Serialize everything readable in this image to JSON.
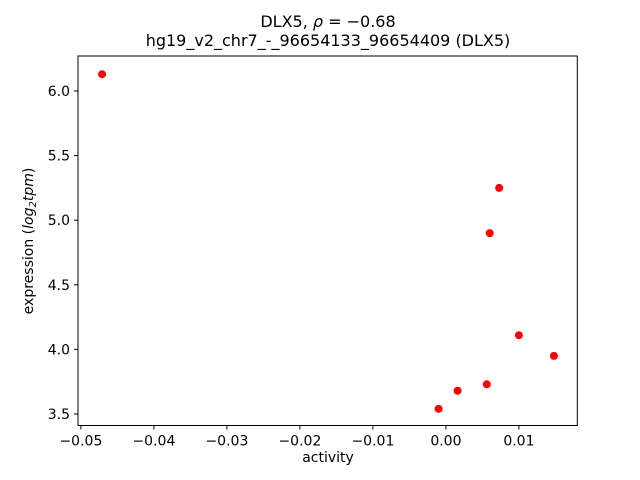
{
  "figure": {
    "title_line1": {
      "prefix": "DLX5, ",
      "rho": "ρ",
      "suffix": " = −0.68"
    },
    "title_line2": "hg19_v2_chr7_-_96654133_96654409 (DLX5)",
    "xlabel": "activity",
    "ylabel": {
      "prefix": "expression (",
      "log": "log",
      "sub": "2",
      "tpm": "tpm",
      "suffix": ")"
    }
  },
  "chart_data": {
    "type": "scatter",
    "title": "DLX5, ρ = −0.68\nhg19_v2_chr7_-_96654133_96654409 (DLX5)",
    "xlabel": "activity",
    "ylabel": "expression (log2tpm)",
    "legend": "none",
    "grid": false,
    "marker_color": "#ff0000",
    "marker_radius_px": 4,
    "axes_color": "#000000",
    "background_color": "#ffffff",
    "xlim": [
      -0.0504,
      0.018
    ],
    "ylim": [
      3.411,
      6.271
    ],
    "xticks": [
      -0.05,
      -0.04,
      -0.03,
      -0.02,
      -0.01,
      0.0,
      0.01
    ],
    "xtick_labels": [
      "−0.05",
      "−0.04",
      "−0.03",
      "−0.02",
      "−0.01",
      "0.00",
      "0.01"
    ],
    "yticks": [
      3.5,
      4.0,
      4.5,
      5.0,
      5.5,
      6.0
    ],
    "ytick_labels": [
      "3.5",
      "4.0",
      "4.5",
      "5.0",
      "5.5",
      "6.0"
    ],
    "points": [
      {
        "x": -0.0471,
        "y": 6.13
      },
      {
        "x": 0.0073,
        "y": 5.25
      },
      {
        "x": 0.006,
        "y": 4.9
      },
      {
        "x": 0.01,
        "y": 4.11
      },
      {
        "x": 0.0148,
        "y": 3.95
      },
      {
        "x": 0.0056,
        "y": 3.73
      },
      {
        "x": 0.0016,
        "y": 3.68
      },
      {
        "x": -0.001,
        "y": 3.54
      }
    ]
  }
}
